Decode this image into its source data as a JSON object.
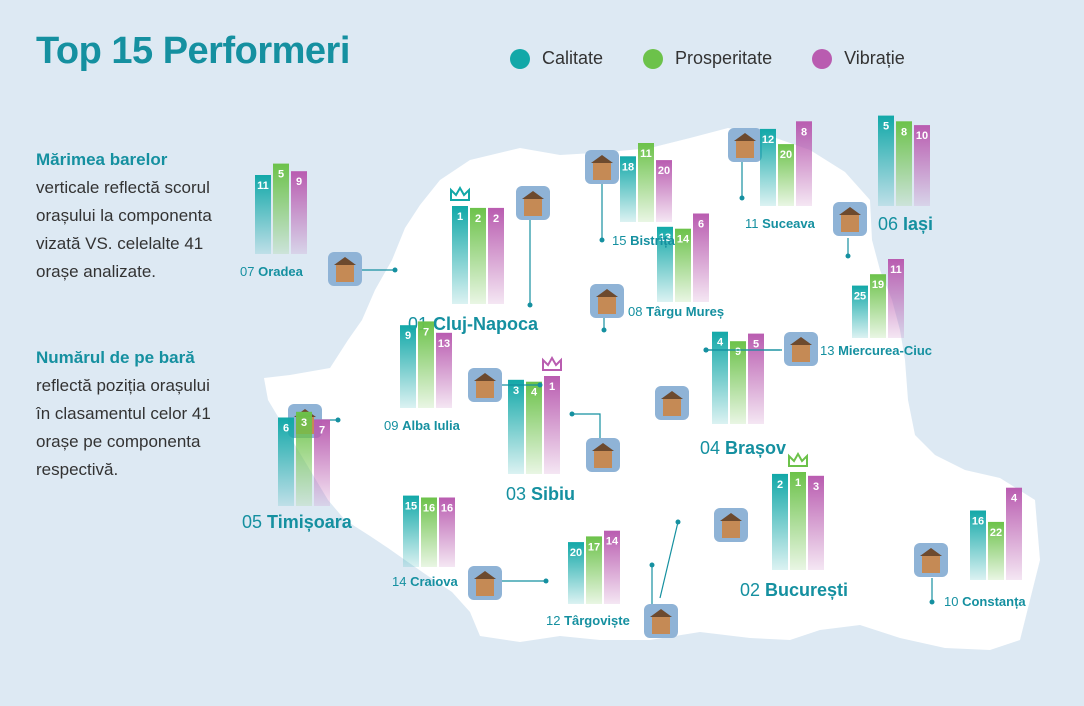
{
  "title": "Top 15 Performeri",
  "legend": [
    {
      "label": "Calitate",
      "color": "#12a8a8"
    },
    {
      "label": "Prosperitate",
      "color": "#6cc24a"
    },
    {
      "label": "Vibrație",
      "color": "#b95cb0"
    }
  ],
  "notes": {
    "note1_strong": "Mărimea barelor",
    "note1_text": " verticale reflectă scorul orașului la componenta vizată VS. celelalte 41 orașe analizate.",
    "note2_strong": "Numărul de pe bară",
    "note2_text": " reflectă poziția orașului în clasamentul celor 41 orașe pe componenta respectivă."
  },
  "chart_data": {
    "type": "bar",
    "series_names": [
      "Calitate",
      "Prosperitate",
      "Vibrație"
    ],
    "value_meaning": "rank among 41 cities (lower is better)",
    "cities": [
      {
        "rank": "01",
        "name": "Cluj-Napoca",
        "values": [
          1,
          2,
          2
        ],
        "crown": true,
        "big": true
      },
      {
        "rank": "02",
        "name": "București",
        "values": [
          2,
          1,
          3
        ],
        "crown": true,
        "big": true
      },
      {
        "rank": "03",
        "name": "Sibiu",
        "values": [
          3,
          4,
          1
        ],
        "crown": true,
        "big": true
      },
      {
        "rank": "04",
        "name": "Brașov",
        "values": [
          4,
          9,
          5
        ],
        "big": true
      },
      {
        "rank": "05",
        "name": "Timișoara",
        "values": [
          6,
          3,
          7
        ],
        "big": true
      },
      {
        "rank": "06",
        "name": "Iași",
        "values": [
          5,
          8,
          10
        ],
        "big": true
      },
      {
        "rank": "07",
        "name": "Oradea",
        "values": [
          11,
          5,
          9
        ]
      },
      {
        "rank": "08",
        "name": "Târgu Mureș",
        "values": [
          13,
          14,
          6
        ]
      },
      {
        "rank": "09",
        "name": "Alba Iulia",
        "values": [
          9,
          7,
          13
        ]
      },
      {
        "rank": "10",
        "name": "Constanța",
        "values": [
          16,
          22,
          4
        ]
      },
      {
        "rank": "11",
        "name": "Suceava",
        "values": [
          12,
          20,
          8
        ]
      },
      {
        "rank": "12",
        "name": "Târgoviște",
        "values": [
          20,
          17,
          14
        ]
      },
      {
        "rank": "13",
        "name": "Miercurea-Ciuc",
        "values": [
          25,
          19,
          11
        ]
      },
      {
        "rank": "14",
        "name": "Craiova",
        "values": [
          15,
          16,
          16
        ]
      },
      {
        "rank": "15",
        "name": "Bistrița",
        "values": [
          18,
          11,
          20
        ]
      }
    ]
  }
}
